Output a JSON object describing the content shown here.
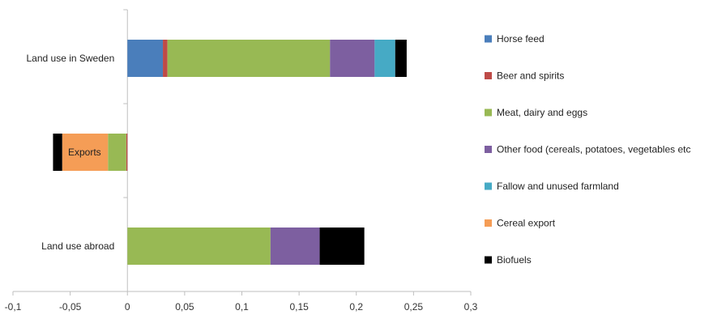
{
  "chart_data": {
    "type": "bar",
    "orientation": "horizontal",
    "stacked": true,
    "title": "",
    "xlabel": "",
    "ylabel": "",
    "xlim": [
      -0.1,
      0.3
    ],
    "x_ticks": [
      "-0,1",
      "-0,05",
      "0",
      "0,05",
      "0,1",
      "0,15",
      "0,2",
      "0,25",
      "0,3"
    ],
    "x_tick_values": [
      -0.1,
      -0.05,
      0,
      0.05,
      0.1,
      0.15,
      0.2,
      0.25,
      0.3
    ],
    "grid": false,
    "legend_position": "right",
    "categories": [
      "Land use in Sweden",
      "Exports",
      "Land use abroad"
    ],
    "category_label_position": [
      "outside-left",
      "inside-bar",
      "outside-left"
    ],
    "series": [
      {
        "name": "Horse feed",
        "color": "#4a7ebb",
        "values": [
          0.031,
          0,
          0
        ]
      },
      {
        "name": "Beer and spirits",
        "color": "#be4b48",
        "values": [
          0.004,
          -0.001,
          0
        ]
      },
      {
        "name": "Meat, dairy and eggs",
        "color": "#98b954",
        "values": [
          0.142,
          -0.016,
          0.125
        ]
      },
      {
        "name": "Other food (cereals, potatoes, vegetables etc",
        "color": "#7d5fa0",
        "values": [
          0.039,
          0,
          0.043
        ]
      },
      {
        "name": "Fallow and unused farmland",
        "color": "#46aac5",
        "values": [
          0.018,
          0,
          0
        ]
      },
      {
        "name": "Cereal export",
        "color": "#f59d56",
        "values": [
          0,
          -0.04,
          0
        ]
      },
      {
        "name": "Biofuels",
        "color": "#000000",
        "values": [
          0.01,
          -0.008,
          0.039
        ]
      }
    ]
  }
}
